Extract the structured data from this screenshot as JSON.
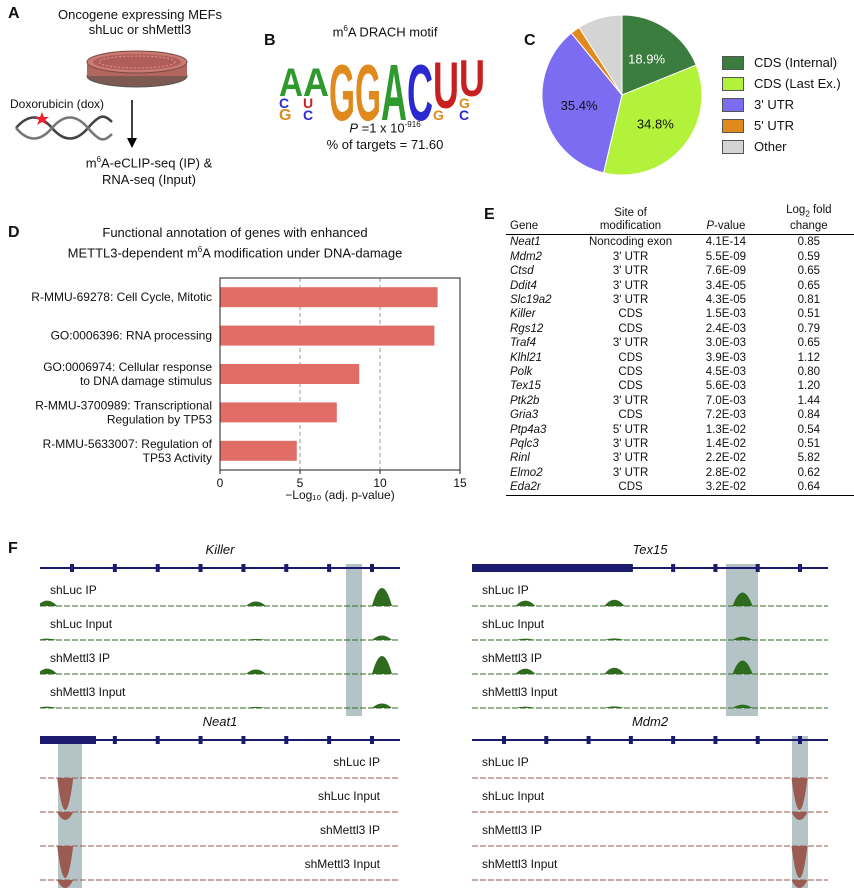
{
  "panel_labels": {
    "a": "A",
    "b": "B",
    "c": "C",
    "d": "D",
    "e": "E",
    "f": "F"
  },
  "panel_a": {
    "title_line1": "Oncogene expressing MEFs",
    "title_line2": "shLuc or shMettl3",
    "dox_label": "Doxorubicin (dox)",
    "out_line1_pre": "m",
    "out_line1_sup": "6",
    "out_line1_post": "A-eCLIP-seq (IP) &",
    "out_line2": "RNA-seq (Input)"
  },
  "panel_b": {
    "title_pre": "m",
    "title_sup": "6",
    "title_post": "A DRACH motif",
    "motif_letters": [
      "A",
      "A",
      "G",
      "G",
      "A",
      "C",
      "U",
      "U"
    ],
    "p_pre": "P",
    "p_mid": " =1 x 10",
    "p_exp": "-916",
    "targets": "% of targets = 71.60"
  },
  "panel_c": {
    "chart_data": {
      "type": "pie",
      "labels": [
        "CDS (Internal)",
        "CDS (Last Ex.)",
        "3' UTR",
        "5' UTR",
        "Other"
      ],
      "values": [
        18.9,
        34.8,
        35.4,
        1.9,
        9.0
      ],
      "value_labels": [
        "18.9%",
        "34.8%",
        "35.4%",
        "",
        ""
      ],
      "colors": [
        "#3a7d3e",
        "#b3f23a",
        "#7b6cf2",
        "#e08a1e",
        "#d4d4d4"
      ],
      "legend_position": "right"
    }
  },
  "panel_d": {
    "title_line1": "Functional annotation of genes with enhanced",
    "title_line2_pre": "METTL3-dependent m",
    "title_line2_sup": "6",
    "title_line2_post": "A modification under DNA-damage",
    "chart_data": {
      "type": "bar",
      "orientation": "horizontal",
      "categories": [
        "R-MMU-69278: Cell Cycle, Mitotic",
        "GO:0006396: RNA processing",
        "GO:0006974: Cellular response to DNA damage stimulus",
        "R-MMU-3700989: Transcriptional Regulation by TP53",
        "R-MMU-5633007: Regulation of TP53 Activity"
      ],
      "category_lines": [
        [
          "R-MMU-69278: Cell Cycle, Mitotic"
        ],
        [
          "GO:0006396: RNA processing"
        ],
        [
          "GO:0006974: Cellular response",
          "to DNA damage stimulus"
        ],
        [
          "R-MMU-3700989: Transcriptional",
          "Regulation by TP53"
        ],
        [
          "R-MMU-5633007: Regulation of",
          "TP53 Activity"
        ]
      ],
      "values": [
        13.6,
        13.4,
        8.7,
        7.3,
        4.8
      ],
      "xlim": [
        0,
        15
      ],
      "xticks": [
        "0",
        "5",
        "10",
        "15"
      ],
      "xlabel": "−Log₁₀ (adj. p-value)",
      "bar_color": "#e06e67",
      "grid": "dashed vertical at 5 and 10"
    }
  },
  "panel_e": {
    "headers": {
      "gene": "Gene",
      "site_line1": "Site of",
      "site_line2": "modification",
      "pval_pre": "P",
      "pval_post": "-value",
      "lfc_line1_pre": "Log",
      "lfc_line1_sub": "2",
      "lfc_line1_post": " fold",
      "lfc_line2": "change"
    },
    "rows": [
      {
        "gene": "Neat1",
        "site": "Noncoding exon",
        "pval": "4.1E-14",
        "lfc": "0.85"
      },
      {
        "gene": "Mdm2",
        "site": "3' UTR",
        "pval": "5.5E-09",
        "lfc": "0.59"
      },
      {
        "gene": "Ctsd",
        "site": "3' UTR",
        "pval": "7.6E-09",
        "lfc": "0.65"
      },
      {
        "gene": "Ddit4",
        "site": "3' UTR",
        "pval": "3.4E-05",
        "lfc": "0.65"
      },
      {
        "gene": "Slc19a2",
        "site": "3' UTR",
        "pval": "4.3E-05",
        "lfc": "0.81"
      },
      {
        "gene": "Killer",
        "site": "CDS",
        "pval": "1.5E-03",
        "lfc": "0.51"
      },
      {
        "gene": "Rgs12",
        "site": "CDS",
        "pval": "2.4E-03",
        "lfc": "0.79"
      },
      {
        "gene": "Traf4",
        "site": "3' UTR",
        "pval": "3.0E-03",
        "lfc": "0.65"
      },
      {
        "gene": "Klhl21",
        "site": "CDS",
        "pval": "3.9E-03",
        "lfc": "1.12"
      },
      {
        "gene": "Polk",
        "site": "CDS",
        "pval": "4.5E-03",
        "lfc": "0.80"
      },
      {
        "gene": "Tex15",
        "site": "CDS",
        "pval": "5.6E-03",
        "lfc": "1.20"
      },
      {
        "gene": "Ptk2b",
        "site": "3' UTR",
        "pval": "7.0E-03",
        "lfc": "1.44"
      },
      {
        "gene": "Gria3",
        "site": "CDS",
        "pval": "7.2E-03",
        "lfc": "0.84"
      },
      {
        "gene": "Ptp4a3",
        "site": "5' UTR",
        "pval": "1.3E-02",
        "lfc": "0.54"
      },
      {
        "gene": "Pqlc3",
        "site": "3' UTR",
        "pval": "1.4E-02",
        "lfc": "0.51"
      },
      {
        "gene": "Rinl",
        "site": "3' UTR",
        "pval": "2.2E-02",
        "lfc": "5.82"
      },
      {
        "gene": "Elmo2",
        "site": "3' UTR",
        "pval": "2.8E-02",
        "lfc": "0.62"
      },
      {
        "gene": "Eda2r",
        "site": "CDS",
        "pval": "3.2E-02",
        "lfc": "0.64"
      }
    ]
  },
  "panel_f": {
    "tracks": [
      {
        "gene": "Killer",
        "labels": [
          "shLuc IP",
          "shLuc Input",
          "shMettl3 IP",
          "shMettl3 Input"
        ],
        "color": "#2e6b1f"
      },
      {
        "gene": "Tex15",
        "labels": [
          "shLuc IP",
          "shLuc Input",
          "shMettl3 IP",
          "shMettl3 Input"
        ],
        "color": "#2e6b1f"
      },
      {
        "gene": "Neat1",
        "labels": [
          "shLuc IP",
          "shLuc Input",
          "shMettl3 IP",
          "shMettl3 Input"
        ],
        "color": "#9b5a52"
      },
      {
        "gene": "Mdm2",
        "labels": [
          "shLuc IP",
          "shLuc Input",
          "shMettl3 IP",
          "shMettl3 Input"
        ],
        "color": "#9b5a52"
      }
    ],
    "gene_model_color": "#1a1a6e",
    "highlight_color": "#b4c4c6"
  }
}
